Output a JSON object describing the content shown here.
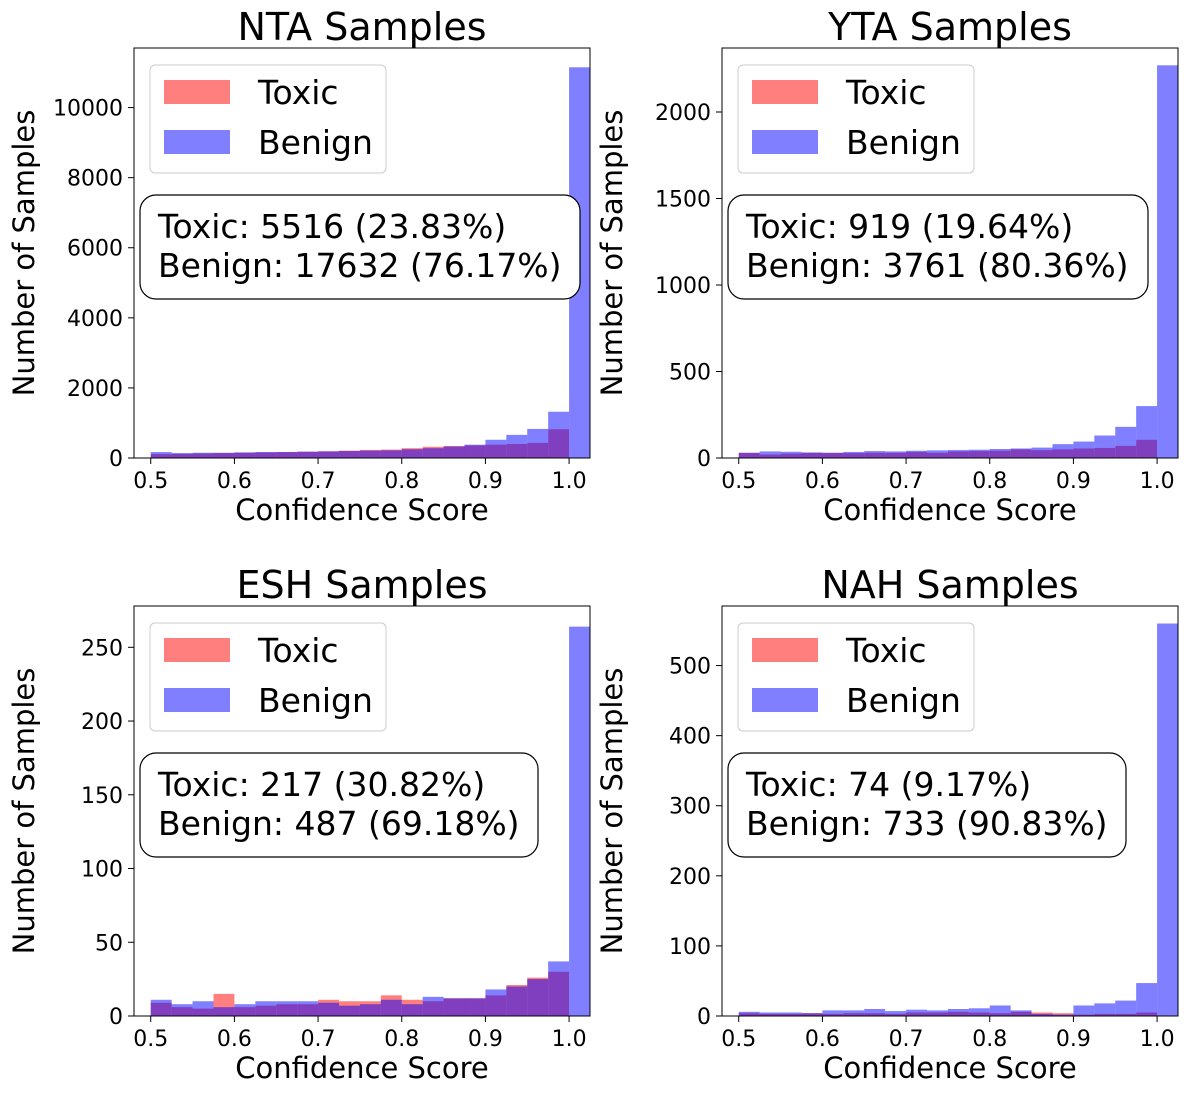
{
  "colors": {
    "toxic": "#ff0000",
    "benign": "#0000ff",
    "overlap": "#7f007f"
  },
  "chart_data": [
    {
      "type": "bar",
      "title": "NTA Samples",
      "xlabel": "Confidence Score",
      "ylabel": "Number of Samples",
      "xlim": [
        0.48,
        1.025
      ],
      "ylim": [
        0,
        11700
      ],
      "xticks": [
        "0.5",
        "0.6",
        "0.7",
        "0.8",
        "0.9",
        "1.0"
      ],
      "yticks": [
        "0",
        "2000",
        "4000",
        "6000",
        "8000",
        "10000"
      ],
      "bins": [
        0.5,
        0.525,
        0.55,
        0.575,
        0.6,
        0.625,
        0.65,
        0.675,
        0.7,
        0.725,
        0.75,
        0.775,
        0.8,
        0.825,
        0.85,
        0.875,
        0.9,
        0.925,
        0.95,
        0.975,
        1.0
      ],
      "legend": {
        "position": "upper-left",
        "entries": [
          "Toxic",
          "Benign"
        ]
      },
      "annotation": {
        "line1": "Toxic: 5516 (23.83%)",
        "line2": "Benign: 17632 (76.17%)"
      },
      "series": [
        {
          "name": "Toxic",
          "color": "#ff0000",
          "values": [
            110,
            120,
            130,
            140,
            150,
            160,
            170,
            180,
            190,
            210,
            230,
            240,
            280,
            320,
            340,
            360,
            380,
            400,
            430,
            820,
            0
          ]
        },
        {
          "name": "Benign",
          "color": "#0000ff",
          "values": [
            170,
            140,
            150,
            150,
            160,
            170,
            170,
            180,
            190,
            200,
            210,
            220,
            250,
            280,
            330,
            380,
            520,
            660,
            830,
            1320,
            11150
          ]
        }
      ]
    },
    {
      "type": "bar",
      "title": "YTA Samples",
      "xlabel": "Confidence Score",
      "ylabel": "Number of Samples",
      "xlim": [
        0.48,
        1.025
      ],
      "ylim": [
        0,
        2370
      ],
      "xticks": [
        "0.5",
        "0.6",
        "0.7",
        "0.8",
        "0.9",
        "1.0"
      ],
      "yticks": [
        "0",
        "500",
        "1000",
        "1500",
        "2000"
      ],
      "bins": [
        0.5,
        0.525,
        0.55,
        0.575,
        0.6,
        0.625,
        0.65,
        0.675,
        0.7,
        0.725,
        0.75,
        0.775,
        0.8,
        0.825,
        0.85,
        0.875,
        0.9,
        0.925,
        0.95,
        0.975,
        1.0
      ],
      "legend": {
        "position": "upper-left",
        "entries": [
          "Toxic",
          "Benign"
        ]
      },
      "annotation": {
        "line1": "Toxic: 919 (19.64%)",
        "line2": "Benign: 3761 (80.36%)"
      },
      "series": [
        {
          "name": "Toxic",
          "color": "#ff0000",
          "values": [
            30,
            20,
            25,
            30,
            30,
            28,
            30,
            30,
            35,
            30,
            38,
            40,
            42,
            50,
            45,
            50,
            55,
            58,
            70,
            105,
            0
          ]
        },
        {
          "name": "Benign",
          "color": "#0000ff",
          "values": [
            30,
            38,
            36,
            32,
            30,
            35,
            40,
            38,
            42,
            44,
            46,
            48,
            52,
            55,
            60,
            80,
            95,
            130,
            180,
            300,
            2270
          ]
        }
      ]
    },
    {
      "type": "bar",
      "title": "ESH Samples",
      "xlabel": "Confidence Score",
      "ylabel": "Number of Samples",
      "xlim": [
        0.48,
        1.025
      ],
      "ylim": [
        0,
        278
      ],
      "xticks": [
        "0.5",
        "0.6",
        "0.7",
        "0.8",
        "0.9",
        "1.0"
      ],
      "yticks": [
        "0",
        "50",
        "100",
        "150",
        "200",
        "250"
      ],
      "bins": [
        0.5,
        0.525,
        0.55,
        0.575,
        0.6,
        0.625,
        0.65,
        0.675,
        0.7,
        0.725,
        0.75,
        0.775,
        0.8,
        0.825,
        0.85,
        0.875,
        0.9,
        0.925,
        0.95,
        0.975,
        1.0
      ],
      "legend": {
        "position": "upper-left",
        "entries": [
          "Toxic",
          "Benign"
        ]
      },
      "annotation": {
        "line1": "Toxic: 217 (30.82%)",
        "line2": "Benign: 487 (69.18%)"
      },
      "series": [
        {
          "name": "Toxic",
          "color": "#ff0000",
          "values": [
            9,
            6,
            5,
            15,
            6,
            7,
            8,
            8,
            11,
            10,
            10,
            14,
            11,
            10,
            12,
            12,
            14,
            21,
            26,
            30,
            0
          ]
        },
        {
          "name": "Benign",
          "color": "#0000ff",
          "values": [
            11,
            8,
            10,
            6,
            8,
            10,
            10,
            10,
            9,
            7,
            8,
            11,
            8,
            13,
            12,
            12,
            18,
            20,
            25,
            37,
            264
          ]
        }
      ]
    },
    {
      "type": "bar",
      "title": "NAH Samples",
      "xlabel": "Confidence Score",
      "ylabel": "Number of Samples",
      "xlim": [
        0.48,
        1.025
      ],
      "ylim": [
        0,
        585
      ],
      "xticks": [
        "0.5",
        "0.6",
        "0.7",
        "0.8",
        "0.9",
        "1.0"
      ],
      "yticks": [
        "0",
        "100",
        "200",
        "300",
        "400",
        "500"
      ],
      "bins": [
        0.5,
        0.525,
        0.55,
        0.575,
        0.6,
        0.625,
        0.65,
        0.675,
        0.7,
        0.725,
        0.75,
        0.775,
        0.8,
        0.825,
        0.85,
        0.875,
        0.9,
        0.925,
        0.95,
        0.975,
        1.0
      ],
      "legend": {
        "position": "upper-left",
        "entries": [
          "Toxic",
          "Benign"
        ]
      },
      "annotation": {
        "line1": "Toxic: 74 (9.17%)",
        "line2": "Benign: 733 (90.83%)"
      },
      "series": [
        {
          "name": "Toxic",
          "color": "#ff0000",
          "values": [
            4,
            3,
            3,
            4,
            3,
            4,
            4,
            3,
            5,
            5,
            6,
            5,
            4,
            6,
            5,
            4,
            2,
            3,
            3,
            5,
            0
          ]
        },
        {
          "name": "Benign",
          "color": "#0000ff",
          "values": [
            6,
            5,
            5,
            4,
            8,
            8,
            10,
            7,
            9,
            8,
            10,
            11,
            15,
            8,
            3,
            2,
            15,
            18,
            22,
            47,
            560
          ]
        }
      ]
    }
  ]
}
